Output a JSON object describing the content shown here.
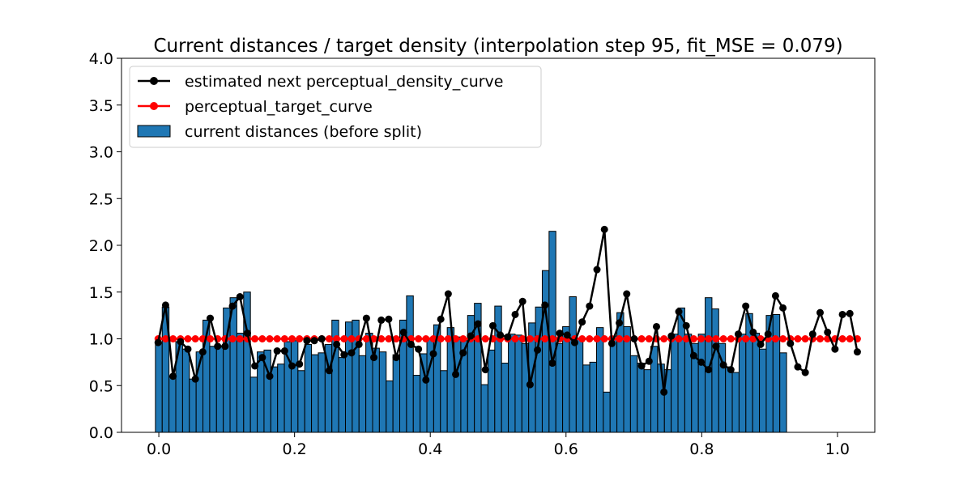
{
  "chart_data": {
    "type": "bar",
    "title": "Current distances / target density (interpolation step 95, fit_MSE = 0.079)",
    "xlabel": "",
    "ylabel": "",
    "xlim": [
      -0.055,
      1.055
    ],
    "ylim": [
      0,
      4.0
    ],
    "xticks": [
      0.0,
      0.2,
      0.4,
      0.6,
      0.8,
      1.0
    ],
    "xtick_labels": [
      "0.0",
      "0.2",
      "0.4",
      "0.6",
      "0.8",
      "1.0"
    ],
    "yticks": [
      0.0,
      0.5,
      1.0,
      1.5,
      2.0,
      2.5,
      3.0,
      3.5,
      4.0
    ],
    "ytick_labels": [
      "0.0",
      "0.5",
      "1.0",
      "1.5",
      "2.0",
      "2.5",
      "3.0",
      "3.5",
      "4.0"
    ],
    "grid": false,
    "legend_position": "top-left",
    "colors": {
      "bars": "#1f77b4",
      "bar_edge": "#000000",
      "estimated_curve": "#000000",
      "target_curve": "#ff0000"
    },
    "series": [
      {
        "name": "current distances (before split)",
        "kind": "histogram",
        "bin_start": -0.005,
        "bin_width": 0.01,
        "values": [
          0.96,
          1.34,
          0.6,
          0.97,
          0.89,
          0.57,
          0.86,
          1.2,
          0.92,
          0.92,
          1.33,
          1.44,
          1.06,
          1.5,
          0.59,
          0.86,
          0.88,
          0.7,
          0.73,
          0.97,
          0.98,
          0.66,
          0.94,
          0.83,
          0.85,
          0.94,
          1.2,
          0.8,
          1.18,
          1.2,
          0.82,
          1.06,
          0.9,
          0.86,
          0.55,
          0.83,
          1.2,
          1.46,
          0.61,
          0.84,
          1.01,
          1.15,
          0.66,
          1.12,
          1.02,
          0.98,
          1.25,
          1.38,
          0.51,
          0.88,
          1.35,
          0.74,
          1.05,
          1.04,
          0.95,
          1.17,
          1.34,
          1.73,
          2.15,
          0.95,
          1.13,
          1.45,
          1.0,
          0.72,
          0.75,
          1.12,
          0.43,
          1.03,
          1.28,
          1.13,
          0.82,
          0.74,
          0.67,
          0.92,
          0.73,
          0.67,
          1.05,
          1.33,
          1.05,
          0.95,
          1.05,
          1.44,
          1.32,
          0.95,
          0.7,
          0.64,
          1.05,
          1.27,
          1.06,
          0.89,
          1.25,
          1.26,
          0.85
        ]
      },
      {
        "name": "estimated next perceptual_density_curve",
        "kind": "line",
        "x_start": -0.001,
        "x_step": 0.01096,
        "values": [
          0.96,
          1.36,
          0.6,
          0.97,
          0.89,
          0.57,
          0.86,
          1.22,
          0.92,
          0.92,
          1.35,
          1.45,
          1.06,
          0.71,
          0.8,
          0.6,
          0.87,
          0.87,
          0.71,
          0.73,
          0.98,
          0.98,
          1.0,
          0.66,
          0.94,
          0.83,
          0.85,
          0.94,
          1.22,
          0.8,
          1.2,
          1.21,
          0.8,
          1.07,
          0.94,
          0.89,
          0.56,
          0.84,
          1.21,
          1.48,
          0.62,
          0.85,
          1.03,
          1.16,
          0.67,
          1.14,
          1.04,
          1.02,
          1.26,
          1.4,
          0.51,
          0.88,
          1.36,
          0.74,
          1.06,
          1.04,
          0.96,
          1.18,
          1.35,
          1.74,
          2.17,
          0.95,
          1.17,
          1.48,
          1.0,
          0.71,
          0.76,
          1.13,
          0.43,
          1.03,
          1.29,
          1.14,
          0.82,
          0.75,
          0.67,
          0.92,
          0.72,
          0.67,
          1.05,
          1.35,
          1.07,
          0.94,
          1.05,
          1.46,
          1.33,
          0.95,
          0.7,
          0.64,
          1.05,
          1.28,
          1.07,
          0.89,
          1.26,
          1.27,
          0.86
        ]
      },
      {
        "name": "perceptual_target_curve",
        "kind": "line",
        "x_start": -0.001,
        "x_step": 0.01096,
        "count": 95,
        "constant": 1.0
      }
    ]
  }
}
